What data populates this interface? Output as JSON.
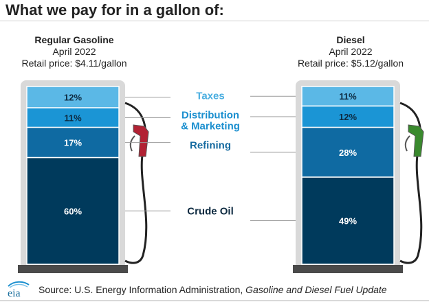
{
  "title": "What we pay for in a gallon of:",
  "pumps": [
    {
      "name": "Regular Gasoline",
      "date": "April 2022",
      "price": "Retail price: $4.11/gallon",
      "nozzle_color": "#b22234"
    },
    {
      "name": "Diesel",
      "date": "April 2022",
      "price": "Retail price: $5.12/gallon",
      "nozzle_color": "#3a8a2e"
    }
  ],
  "components": [
    {
      "label": "Taxes",
      "color": "#5bb8e6",
      "label_color": "#4aaee0"
    },
    {
      "label": "Distribution\n& Marketing",
      "color": "#1b95d5",
      "label_color": "#1b8fcf"
    },
    {
      "label": "Refining",
      "color": "#0f6aa2",
      "label_color": "#156aa0"
    },
    {
      "label": "Crude Oil",
      "color": "#003a5c",
      "label_color": "#0d2a40"
    }
  ],
  "chart_data": {
    "type": "bar",
    "stacked": true,
    "categories": [
      "Regular Gasoline",
      "Diesel"
    ],
    "series": [
      {
        "name": "Taxes",
        "values": [
          12,
          11
        ]
      },
      {
        "name": "Distribution & Marketing",
        "values": [
          11,
          12
        ]
      },
      {
        "name": "Refining",
        "values": [
          17,
          28
        ]
      },
      {
        "name": "Crude Oil",
        "values": [
          60,
          49
        ]
      }
    ],
    "value_labels": [
      [
        "12%",
        "11%",
        "17%",
        "60%"
      ],
      [
        "11%",
        "12%",
        "28%",
        "49%"
      ]
    ],
    "unit": "%",
    "ylim": [
      0,
      100
    ],
    "title": "What we pay for in a gallon of:"
  },
  "footer": {
    "logo_text": "eia",
    "source_prefix": "Source: U.S. Energy Information Administration, ",
    "source_italic": "Gasoline and Diesel Fuel Update"
  }
}
